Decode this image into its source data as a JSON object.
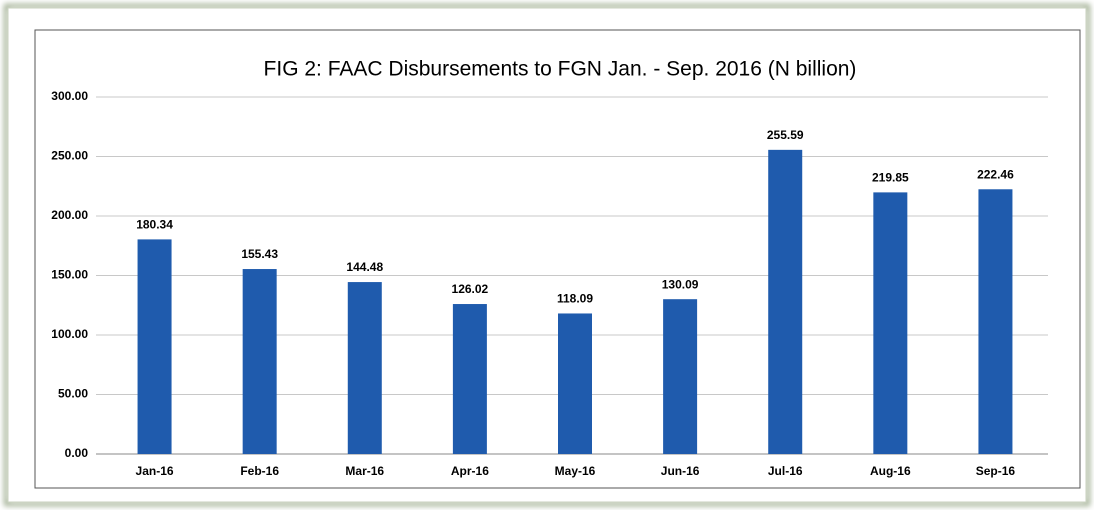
{
  "chart_data": {
    "type": "bar",
    "title": "FIG 2: FAAC Disbursements to FGN Jan. - Sep. 2016 (N billion)",
    "categories": [
      "Jan-16",
      "Feb-16",
      "Mar-16",
      "Apr-16",
      "May-16",
      "Jun-16",
      "Jul-16",
      "Aug-16",
      "Sep-16"
    ],
    "values": [
      180.34,
      155.43,
      144.48,
      126.02,
      118.09,
      130.09,
      255.59,
      219.85,
      222.46
    ],
    "color": "#1f5bad",
    "ylim": [
      0,
      300
    ],
    "yticks": [
      {
        "value": 0,
        "label": "0.00"
      },
      {
        "value": 50,
        "label": "50.00"
      },
      {
        "value": 100,
        "label": "100.00"
      },
      {
        "value": 150,
        "label": "150.00"
      },
      {
        "value": 200,
        "label": "200.00"
      },
      {
        "value": 250,
        "label": "250.00"
      },
      {
        "value": 300,
        "label": "300.00"
      }
    ],
    "grid": true
  }
}
